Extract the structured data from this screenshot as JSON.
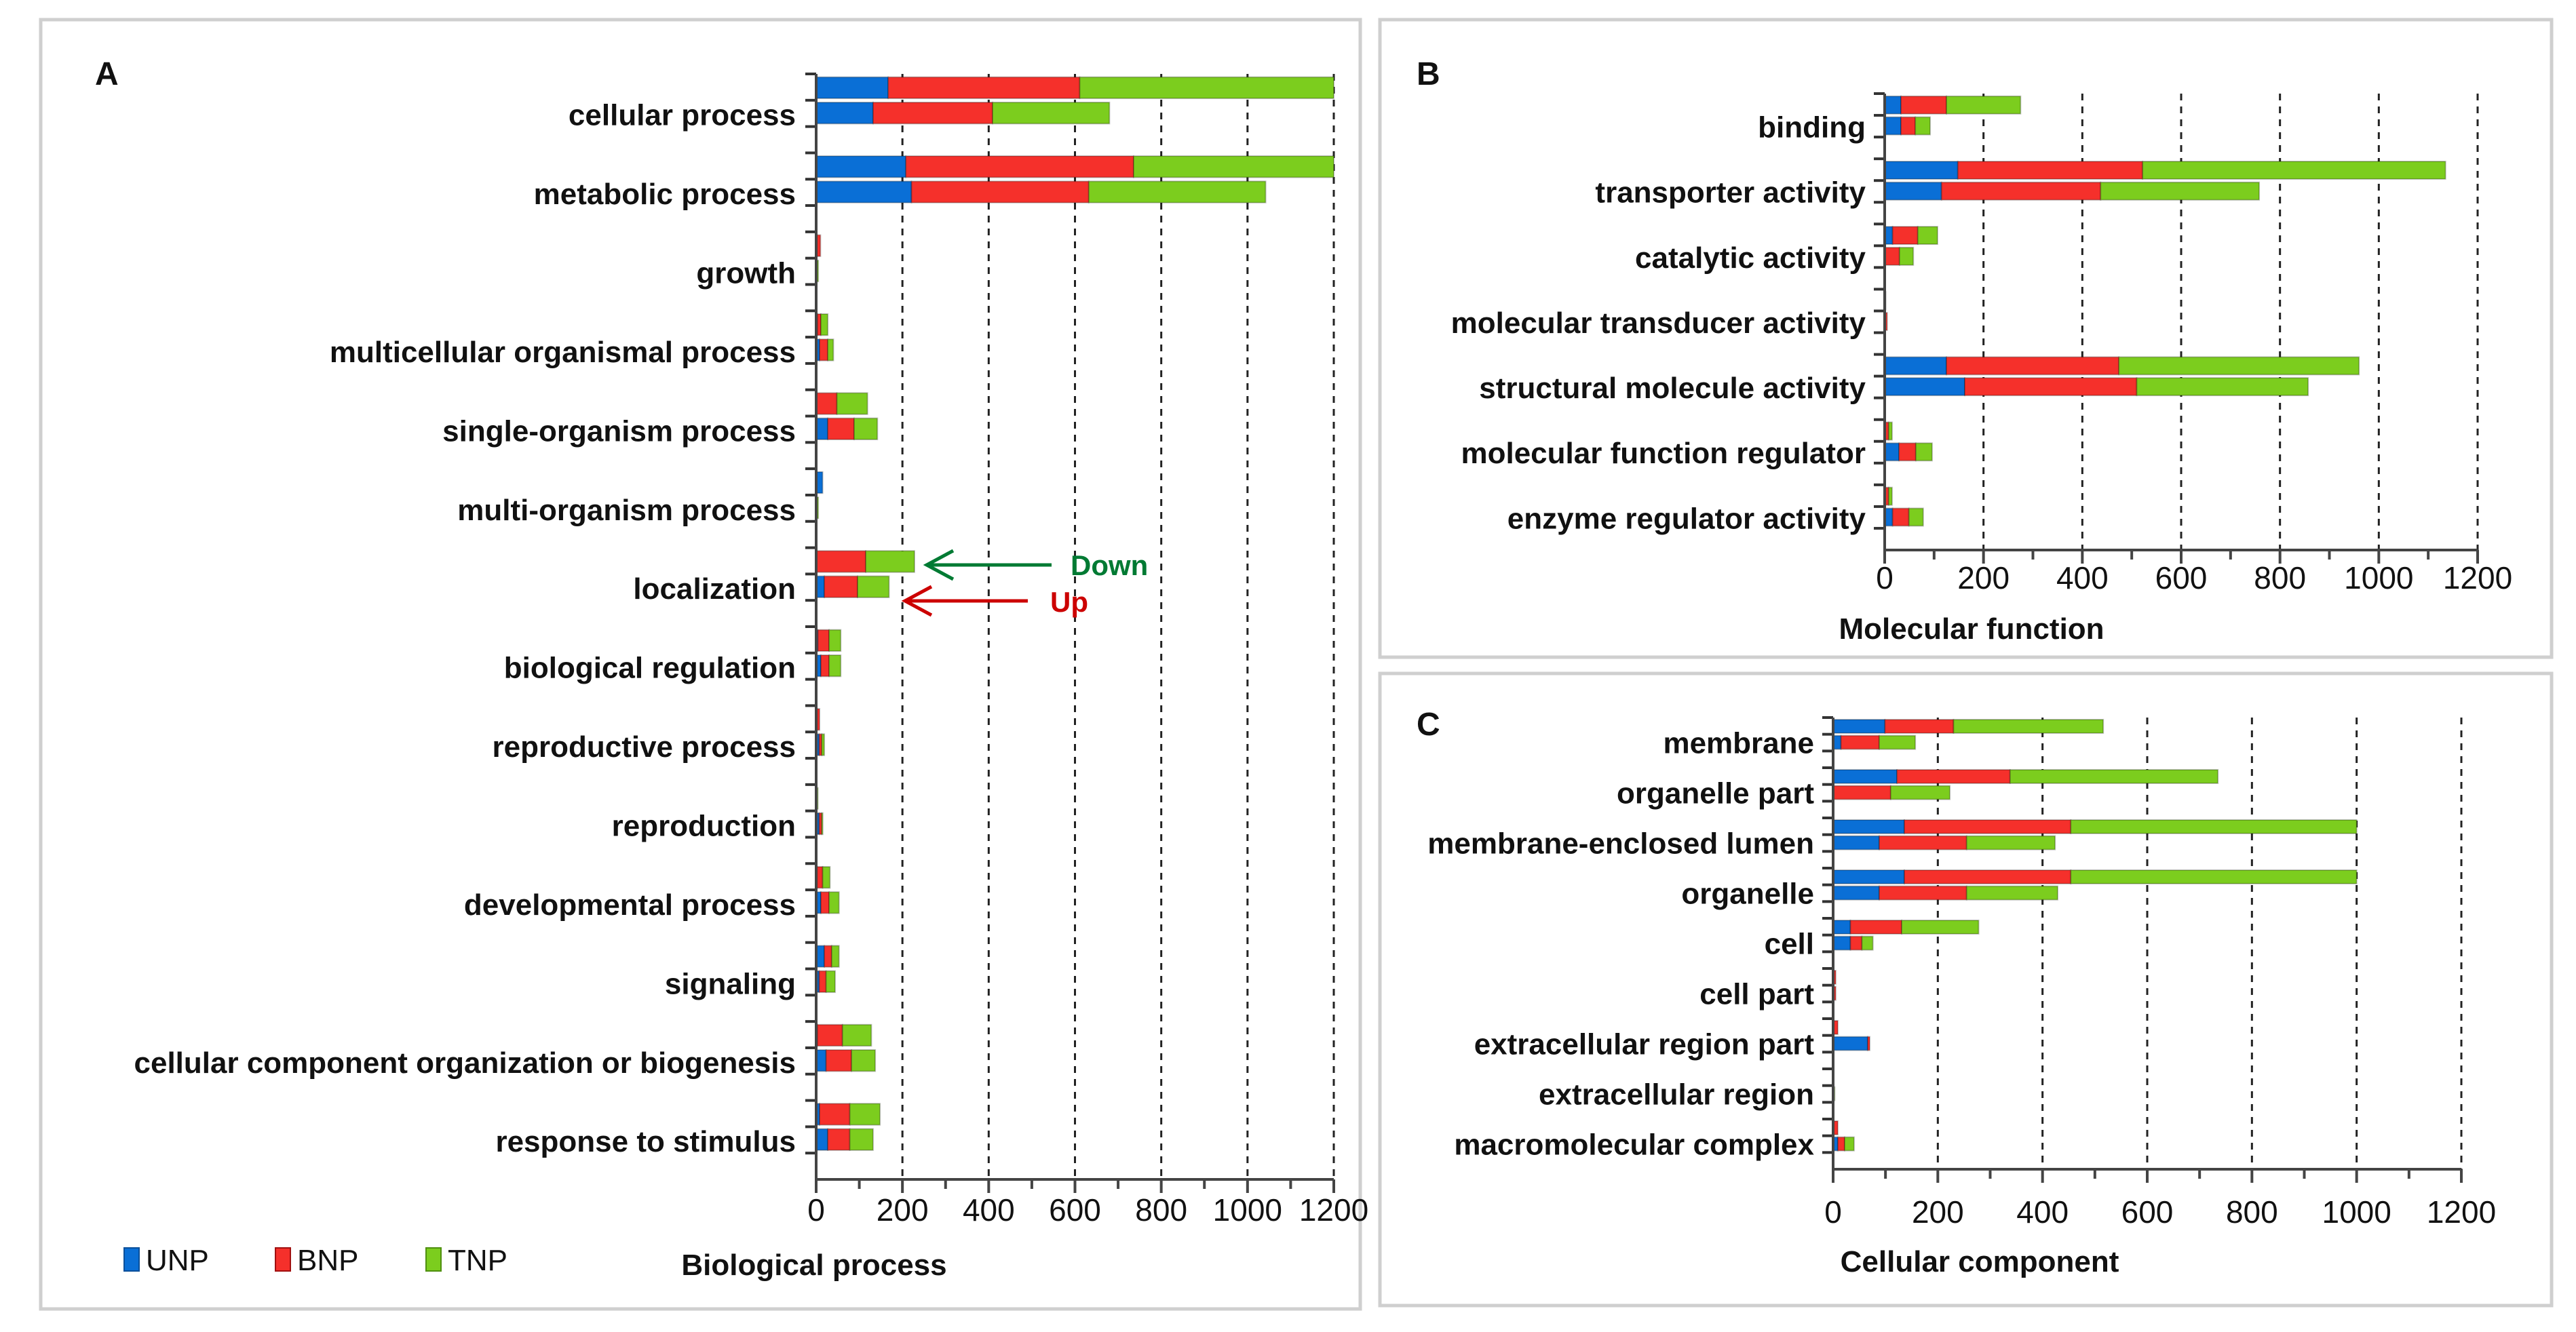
{
  "legend": [
    {
      "name": "UNP",
      "color": "#0a6fd6"
    },
    {
      "name": "BNP",
      "color": "#f5302b"
    },
    {
      "name": "TNP",
      "color": "#7ccd1e"
    }
  ],
  "annotations": {
    "down": "Down",
    "up": "Up",
    "down_color": "#007a33",
    "up_color": "#cc0000"
  },
  "chart_data": [
    {
      "panel": "A",
      "type": "bar",
      "orientation": "horizontal-stacked",
      "xlabel": "Biological process",
      "xlim": [
        0,
        1200
      ],
      "xticks": [
        "0",
        "200",
        "400",
        "600",
        "800",
        "1000",
        "1200"
      ],
      "grid": "vertical dashed",
      "bars_per_category": [
        "Down",
        "Up"
      ],
      "categories": [
        "cellular process",
        "metabolic process",
        "growth",
        "multicellular organismal process",
        "single-organism process",
        "multi-organism process",
        "localization",
        "biological regulation",
        "reproductive process",
        "reproduction",
        "developmental process",
        "signaling",
        "cellular component organization or biogenesis",
        "response to stimulus"
      ],
      "series": [
        {
          "name": "UNP",
          "down": [
            167,
            208,
            2,
            3,
            0,
            15,
            0,
            4,
            2,
            0,
            2,
            19,
            3,
            8
          ],
          "up": [
            132,
            221,
            0,
            8,
            27,
            0,
            19,
            11,
            7,
            7,
            11,
            7,
            23,
            27
          ]
        },
        {
          "name": "BNP",
          "down": [
            444,
            528,
            8,
            8,
            48,
            0,
            115,
            26,
            6,
            0,
            13,
            17,
            58,
            70
          ],
          "up": [
            277,
            411,
            0,
            19,
            61,
            0,
            77,
            19,
            6,
            6,
            19,
            16,
            59,
            51
          ]
        },
        {
          "name": "TNP",
          "down": [
            589,
            464,
            0,
            16,
            71,
            0,
            113,
            27,
            0,
            4,
            17,
            17,
            67,
            70
          ],
          "up": [
            271,
            410,
            5,
            13,
            54,
            5,
            73,
            27,
            6,
            1,
            23,
            21,
            55,
            54
          ]
        }
      ]
    },
    {
      "panel": "B",
      "type": "bar",
      "orientation": "horizontal-stacked",
      "xlabel": "Molecular function",
      "xlim": [
        0,
        1200
      ],
      "xticks": [
        "0",
        "200",
        "400",
        "600",
        "800",
        "1000",
        "1200"
      ],
      "grid": "vertical dashed",
      "bars_per_category": [
        "Down",
        "Up"
      ],
      "categories": [
        "binding",
        "transporter activity",
        "catalytic activity",
        "molecular transducer activity",
        "structural molecule activity",
        "molecular function regulator",
        "enzyme regulator activity"
      ],
      "series": [
        {
          "name": "UNP",
          "down": [
            33,
            148,
            16,
            0,
            125,
            0,
            0
          ],
          "up": [
            33,
            115,
            0,
            0,
            162,
            29,
            16
          ]
        },
        {
          "name": "BNP",
          "down": [
            92,
            374,
            51,
            0,
            349,
            8,
            8
          ],
          "up": [
            29,
            322,
            30,
            5,
            348,
            34,
            33
          ]
        },
        {
          "name": "TNP",
          "down": [
            150,
            613,
            40,
            2,
            486,
            7,
            7
          ],
          "up": [
            30,
            321,
            28,
            0,
            347,
            33,
            29
          ]
        }
      ]
    },
    {
      "panel": "C",
      "type": "bar",
      "orientation": "horizontal-stacked",
      "xlabel": "Cellular component",
      "xlim": [
        0,
        1200
      ],
      "xticks": [
        "0",
        "200",
        "400",
        "600",
        "800",
        "1000",
        "1200"
      ],
      "grid": "vertical dashed",
      "bars_per_category": [
        "Down",
        "Up"
      ],
      "categories": [
        "membrane",
        "organelle part",
        "membrane-enclosed lumen",
        "organelle",
        "cell",
        "cell part",
        "extracellular region part",
        "extracellular region",
        "macromolecular complex"
      ],
      "series": [
        {
          "name": "UNP",
          "down": [
            99,
            122,
            136,
            136,
            33,
            0,
            0,
            0,
            0
          ],
          "up": [
            15,
            0,
            88,
            88,
            33,
            0,
            66,
            0,
            9
          ]
        },
        {
          "name": "BNP",
          "down": [
            131,
            216,
            318,
            318,
            98,
            5,
            9,
            0,
            9
          ],
          "up": [
            73,
            110,
            167,
            167,
            22,
            5,
            4,
            0,
            13
          ]
        },
        {
          "name": "TNP",
          "down": [
            286,
            397,
            546,
            546,
            147,
            0,
            0,
            0,
            0
          ],
          "up": [
            69,
            113,
            169,
            174,
            21,
            0,
            0,
            3,
            18
          ]
        }
      ]
    }
  ]
}
